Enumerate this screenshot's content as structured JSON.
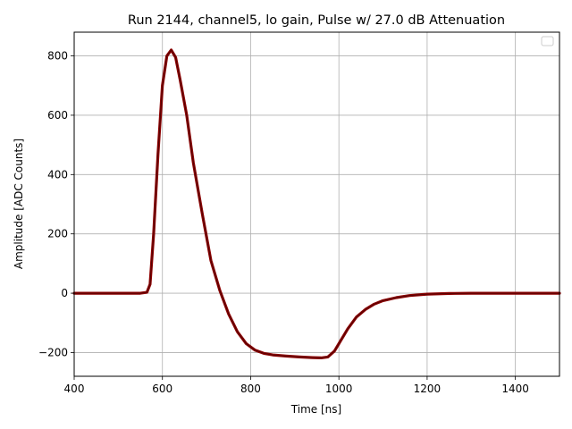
{
  "chart_data": {
    "type": "line",
    "title": "Run 2144, channel5, lo gain, Pulse w/ 27.0 dB Attenuation",
    "xlabel": "Time [ns]",
    "ylabel": "Amplitude [ADC Counts]",
    "xlim": [
      400,
      1500
    ],
    "ylim": [
      -280,
      880
    ],
    "xticks": [
      400,
      600,
      800,
      1000,
      1200,
      1400
    ],
    "xtick_labels": [
      "400",
      "600",
      "800",
      "1000",
      "1200",
      "1400"
    ],
    "yticks": [
      -200,
      0,
      200,
      400,
      600,
      800
    ],
    "ytick_labels": [
      "−200",
      "0",
      "200",
      "400",
      "600",
      "800"
    ],
    "grid": true,
    "legend": {
      "placement": "top-right",
      "entries": []
    },
    "series": [
      {
        "color": "#8b0000",
        "x": [
          400,
          450,
          500,
          550,
          565,
          572,
          580,
          590,
          600,
          610,
          620,
          630,
          640,
          655,
          670,
          690,
          710,
          730,
          750,
          770,
          790,
          810,
          830,
          850,
          880,
          910,
          940,
          960,
          975,
          990,
          1000,
          1020,
          1040,
          1060,
          1080,
          1100,
          1130,
          1160,
          1200,
          1250,
          1300,
          1400,
          1500
        ],
        "y": [
          0,
          0,
          0,
          0,
          3,
          30,
          200,
          470,
          700,
          800,
          820,
          795,
          720,
          600,
          440,
          270,
          110,
          10,
          -70,
          -130,
          -170,
          -192,
          -203,
          -208,
          -212,
          -215,
          -217,
          -218,
          -215,
          -195,
          -170,
          -120,
          -80,
          -55,
          -37,
          -25,
          -15,
          -8,
          -3,
          -1,
          0,
          0,
          0
        ]
      }
    ]
  }
}
